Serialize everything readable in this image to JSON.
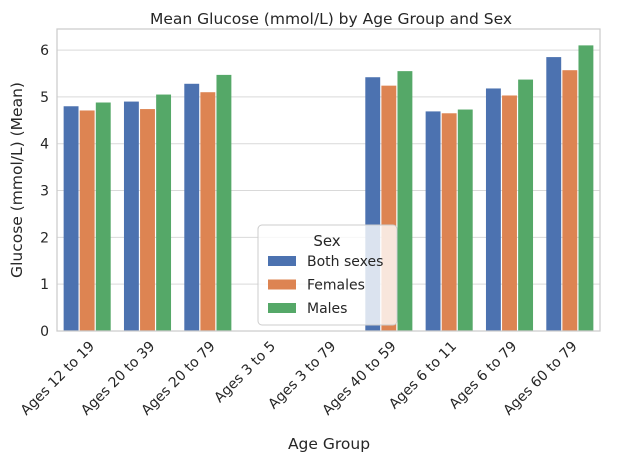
{
  "chart_data": {
    "type": "bar",
    "title": "Mean Glucose (mmol/L) by Age Group and Sex",
    "xlabel": "Age Group",
    "ylabel": "Glucose (mmol/L) (Mean)",
    "ylim": [
      0,
      6.45
    ],
    "yticks": [
      0,
      1,
      2,
      3,
      4,
      5,
      6
    ],
    "grid": true,
    "categories": [
      "Ages 12 to 19",
      "Ages 20 to 39",
      "Ages 20 to 79",
      "Ages 3 to 5",
      "Ages 3 to 79",
      "Ages 40 to 59",
      "Ages 6 to 11",
      "Ages 6 to 79",
      "Ages 60 to 79"
    ],
    "series": [
      {
        "name": "Both sexes",
        "color": "#4c72b0",
        "values": [
          4.8,
          4.9,
          5.28,
          null,
          null,
          5.42,
          4.69,
          5.18,
          5.85
        ]
      },
      {
        "name": "Females",
        "color": "#dd8452",
        "values": [
          4.71,
          4.74,
          5.1,
          null,
          null,
          5.24,
          4.65,
          5.03,
          5.57
        ]
      },
      {
        "name": "Males",
        "color": "#55a868",
        "values": [
          4.88,
          5.05,
          5.47,
          null,
          null,
          5.55,
          4.73,
          5.37,
          6.1
        ]
      }
    ],
    "legend": {
      "title": "Sex",
      "placement": "lower-center"
    }
  }
}
